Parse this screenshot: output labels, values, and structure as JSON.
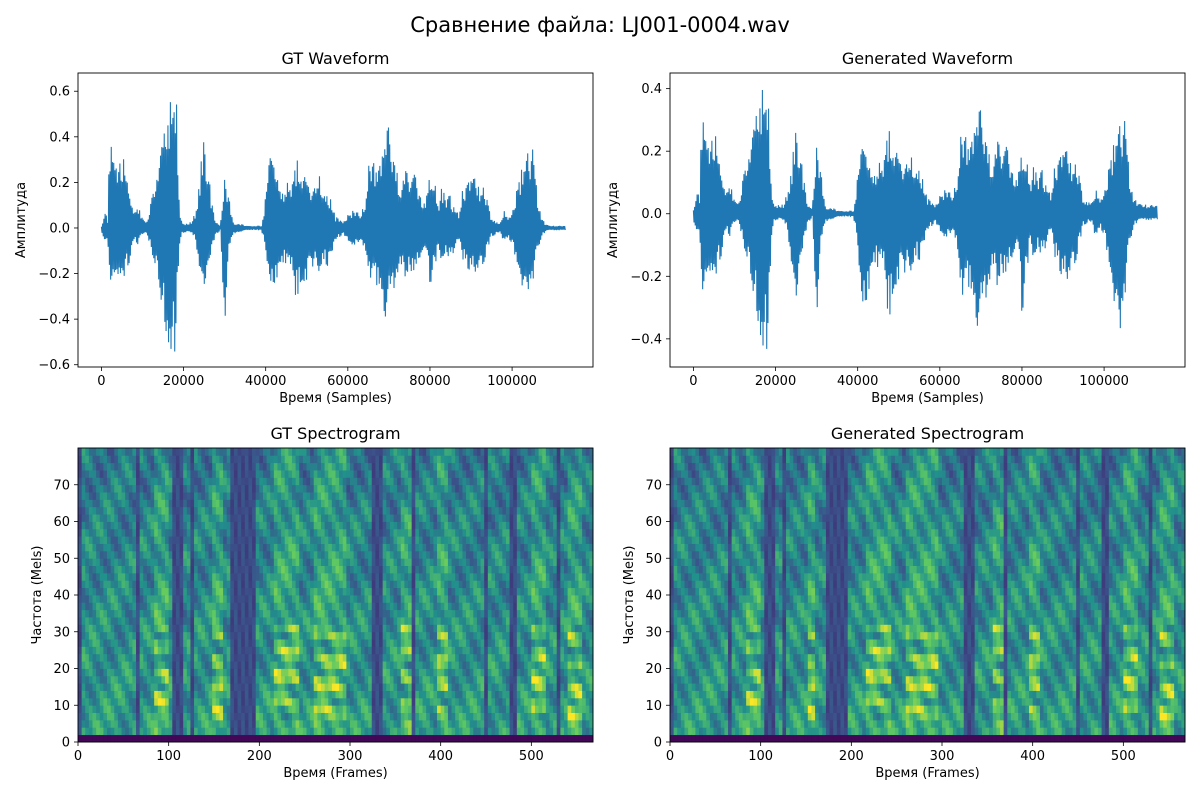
{
  "figure": {
    "suptitle": "Сравнение файла: LJ001-0004.wav"
  },
  "colors": {
    "waveform": "#1f77b4",
    "colormap": "viridis"
  },
  "chart_data": [
    {
      "id": "gt-waveform",
      "type": "line",
      "title": "GT Waveform",
      "xlabel": "Время (Samples)",
      "ylabel": "Амплитуда",
      "xlim": [
        -5700,
        119700
      ],
      "ylim": [
        -0.61,
        0.68
      ],
      "xticks": [
        0,
        20000,
        40000,
        60000,
        80000,
        100000
      ],
      "xtick_labels": [
        "0",
        "20000",
        "40000",
        "60000",
        "80000",
        "100000"
      ],
      "yticks": [
        -0.6,
        -0.4,
        -0.2,
        0.0,
        0.2,
        0.4,
        0.6
      ],
      "ytick_labels": [
        "−0.6",
        "−0.4",
        "−0.2",
        "0.0",
        "0.2",
        "0.4",
        "0.6"
      ],
      "series": [
        {
          "color": "#1f77b4",
          "envelope_x": [
            0,
            500,
            1000,
            1500,
            2000,
            3000,
            4000,
            5000,
            6000,
            7000,
            8000,
            9000,
            10000,
            11000,
            12000,
            13000,
            14000,
            15000,
            16000,
            17000,
            17500,
            18000,
            18500,
            19000,
            19500,
            20000,
            21000,
            22000,
            23000,
            24000,
            25000,
            26000,
            27000,
            28000,
            29000,
            30000,
            31000,
            32000,
            33000,
            34000,
            35000,
            36000,
            37000,
            38000,
            39000,
            40000,
            41000,
            42000,
            43000,
            44000,
            45000,
            46000,
            47000,
            48000,
            49000,
            50000,
            51000,
            52000,
            53000,
            54000,
            55000,
            56000,
            57000,
            58000,
            59000,
            60000,
            61000,
            62000,
            63000,
            64000,
            65000,
            66000,
            67000,
            68000,
            69000,
            70000,
            71000,
            72000,
            73000,
            74000,
            75000,
            76000,
            77000,
            78000,
            79000,
            80000,
            81000,
            82000,
            83000,
            84000,
            85000,
            86000,
            87000,
            88000,
            89000,
            90000,
            91000,
            92000,
            93000,
            94000,
            95000,
            96000,
            97000,
            98000,
            99000,
            100000,
            101000,
            102000,
            103000,
            104000,
            105000,
            106000,
            107000,
            108000,
            109000,
            110000,
            111000,
            112000,
            113000
          ],
          "envelope_max": [
            0.01,
            0.05,
            0.08,
            0.04,
            0.4,
            0.32,
            0.25,
            0.32,
            0.28,
            0.18,
            0.08,
            0.1,
            0.05,
            0.02,
            0.12,
            0.18,
            0.28,
            0.4,
            0.5,
            0.58,
            0.62,
            0.62,
            0.5,
            0.1,
            0.04,
            0.02,
            0.02,
            0.03,
            0.08,
            0.24,
            0.45,
            0.28,
            0.1,
            0.03,
            0.01,
            0.26,
            0.14,
            0.03,
            0.02,
            0.02,
            0.01,
            0.01,
            0.01,
            0.01,
            0.01,
            0.14,
            0.4,
            0.32,
            0.26,
            0.2,
            0.22,
            0.18,
            0.3,
            0.32,
            0.25,
            0.22,
            0.2,
            0.22,
            0.28,
            0.18,
            0.18,
            0.12,
            0.05,
            0.04,
            0.03,
            0.06,
            0.08,
            0.08,
            0.06,
            0.1,
            0.31,
            0.3,
            0.26,
            0.32,
            0.4,
            0.47,
            0.38,
            0.28,
            0.2,
            0.26,
            0.22,
            0.24,
            0.22,
            0.12,
            0.12,
            0.24,
            0.23,
            0.1,
            0.2,
            0.16,
            0.14,
            0.1,
            0.06,
            0.18,
            0.2,
            0.24,
            0.26,
            0.18,
            0.18,
            0.12,
            0.05,
            0.03,
            0.02,
            0.08,
            0.04,
            0.08,
            0.16,
            0.26,
            0.34,
            0.4,
            0.36,
            0.18,
            0.06,
            0.02,
            0.01,
            0.01,
            0.01,
            0.01,
            0.01
          ],
          "envelope_min": [
            -0.01,
            -0.05,
            -0.08,
            -0.05,
            -0.32,
            -0.25,
            -0.2,
            -0.24,
            -0.2,
            -0.16,
            -0.06,
            -0.08,
            -0.03,
            -0.02,
            -0.1,
            -0.18,
            -0.26,
            -0.4,
            -0.5,
            -0.54,
            -0.55,
            -0.54,
            -0.3,
            -0.08,
            -0.03,
            -0.02,
            -0.02,
            -0.03,
            -0.06,
            -0.22,
            -0.28,
            -0.22,
            -0.08,
            -0.03,
            -0.01,
            -0.47,
            -0.12,
            -0.03,
            -0.02,
            -0.02,
            -0.01,
            -0.01,
            -0.01,
            -0.01,
            -0.01,
            -0.1,
            -0.31,
            -0.26,
            -0.22,
            -0.18,
            -0.16,
            -0.18,
            -0.3,
            -0.3,
            -0.26,
            -0.24,
            -0.2,
            -0.16,
            -0.23,
            -0.14,
            -0.18,
            -0.12,
            -0.05,
            -0.04,
            -0.03,
            -0.06,
            -0.08,
            -0.08,
            -0.06,
            -0.1,
            -0.26,
            -0.26,
            -0.28,
            -0.32,
            -0.4,
            -0.38,
            -0.3,
            -0.22,
            -0.18,
            -0.26,
            -0.22,
            -0.2,
            -0.18,
            -0.1,
            -0.12,
            -0.25,
            -0.2,
            -0.08,
            -0.16,
            -0.12,
            -0.14,
            -0.1,
            -0.05,
            -0.16,
            -0.18,
            -0.2,
            -0.22,
            -0.16,
            -0.16,
            -0.1,
            -0.04,
            -0.03,
            -0.02,
            -0.06,
            -0.04,
            -0.08,
            -0.14,
            -0.24,
            -0.3,
            -0.32,
            -0.28,
            -0.12,
            -0.05,
            -0.02,
            -0.01,
            -0.01,
            -0.01,
            -0.01,
            -0.01
          ]
        }
      ]
    },
    {
      "id": "gen-waveform",
      "type": "line",
      "title": "Generated Waveform",
      "xlabel": "Время (Samples)",
      "ylabel": "Амплитуда",
      "xlim": [
        -5700,
        119700
      ],
      "ylim": [
        -0.49,
        0.45
      ],
      "xticks": [
        0,
        20000,
        40000,
        60000,
        80000,
        100000
      ],
      "xtick_labels": [
        "0",
        "20000",
        "40000",
        "60000",
        "80000",
        "100000"
      ],
      "yticks": [
        -0.4,
        -0.2,
        0.0,
        0.2,
        0.4
      ],
      "ytick_labels": [
        "−0.4",
        "−0.2",
        "0.0",
        "0.2",
        "0.4"
      ],
      "series": [
        {
          "color": "#1f77b4",
          "envelope_x": [
            0,
            500,
            1000,
            1500,
            2000,
            3000,
            4000,
            5000,
            6000,
            7000,
            8000,
            9000,
            10000,
            11000,
            12000,
            13000,
            14000,
            15000,
            16000,
            17000,
            17500,
            18000,
            18500,
            19000,
            19500,
            20000,
            21000,
            22000,
            23000,
            24000,
            25000,
            26000,
            27000,
            28000,
            29000,
            30000,
            31000,
            32000,
            33000,
            34000,
            35000,
            36000,
            37000,
            38000,
            39000,
            40000,
            41000,
            42000,
            43000,
            44000,
            45000,
            46000,
            47000,
            48000,
            49000,
            50000,
            51000,
            52000,
            53000,
            54000,
            55000,
            56000,
            57000,
            58000,
            59000,
            60000,
            61000,
            62000,
            63000,
            64000,
            65000,
            66000,
            67000,
            68000,
            69000,
            70000,
            71000,
            72000,
            73000,
            74000,
            75000,
            76000,
            77000,
            78000,
            79000,
            80000,
            81000,
            82000,
            83000,
            84000,
            85000,
            86000,
            87000,
            88000,
            89000,
            90000,
            91000,
            92000,
            93000,
            94000,
            95000,
            96000,
            97000,
            98000,
            99000,
            100000,
            101000,
            102000,
            103000,
            104000,
            105000,
            106000,
            107000,
            108000,
            109000,
            110000,
            111000,
            112000,
            113000
          ],
          "envelope_max": [
            0.02,
            0.05,
            0.08,
            0.06,
            0.33,
            0.26,
            0.2,
            0.27,
            0.22,
            0.15,
            0.08,
            0.1,
            0.05,
            0.03,
            0.12,
            0.16,
            0.22,
            0.3,
            0.38,
            0.41,
            0.41,
            0.4,
            0.3,
            0.1,
            0.04,
            0.03,
            0.03,
            0.03,
            0.08,
            0.16,
            0.31,
            0.22,
            0.1,
            0.03,
            0.02,
            0.26,
            0.14,
            0.03,
            0.02,
            0.02,
            0.01,
            0.01,
            0.01,
            0.01,
            0.01,
            0.12,
            0.27,
            0.22,
            0.18,
            0.16,
            0.18,
            0.15,
            0.28,
            0.28,
            0.22,
            0.19,
            0.18,
            0.2,
            0.22,
            0.16,
            0.18,
            0.1,
            0.05,
            0.04,
            0.03,
            0.06,
            0.08,
            0.08,
            0.06,
            0.1,
            0.28,
            0.26,
            0.22,
            0.27,
            0.32,
            0.35,
            0.3,
            0.22,
            0.18,
            0.24,
            0.2,
            0.22,
            0.2,
            0.12,
            0.12,
            0.2,
            0.19,
            0.1,
            0.17,
            0.14,
            0.14,
            0.1,
            0.06,
            0.16,
            0.18,
            0.22,
            0.24,
            0.16,
            0.16,
            0.12,
            0.05,
            0.04,
            0.04,
            0.08,
            0.04,
            0.08,
            0.14,
            0.22,
            0.3,
            0.34,
            0.31,
            0.16,
            0.06,
            0.04,
            0.03,
            0.03,
            0.03,
            0.03,
            0.03
          ],
          "envelope_min": [
            -0.02,
            -0.05,
            -0.08,
            -0.06,
            -0.35,
            -0.24,
            -0.18,
            -0.22,
            -0.18,
            -0.14,
            -0.06,
            -0.08,
            -0.03,
            -0.02,
            -0.1,
            -0.16,
            -0.22,
            -0.3,
            -0.38,
            -0.43,
            -0.44,
            -0.43,
            -0.3,
            -0.08,
            -0.03,
            -0.02,
            -0.02,
            -0.03,
            -0.06,
            -0.2,
            -0.3,
            -0.2,
            -0.08,
            -0.03,
            -0.01,
            -0.36,
            -0.12,
            -0.03,
            -0.02,
            -0.02,
            -0.01,
            -0.01,
            -0.01,
            -0.01,
            -0.01,
            -0.1,
            -0.38,
            -0.3,
            -0.24,
            -0.18,
            -0.18,
            -0.16,
            -0.3,
            -0.34,
            -0.26,
            -0.22,
            -0.22,
            -0.18,
            -0.22,
            -0.14,
            -0.16,
            -0.1,
            -0.05,
            -0.04,
            -0.03,
            -0.06,
            -0.08,
            -0.08,
            -0.06,
            -0.1,
            -0.32,
            -0.3,
            -0.26,
            -0.32,
            -0.36,
            -0.4,
            -0.3,
            -0.24,
            -0.18,
            -0.28,
            -0.22,
            -0.2,
            -0.18,
            -0.12,
            -0.12,
            -0.33,
            -0.22,
            -0.08,
            -0.16,
            -0.12,
            -0.14,
            -0.1,
            -0.05,
            -0.16,
            -0.18,
            -0.22,
            -0.24,
            -0.16,
            -0.16,
            -0.1,
            -0.04,
            -0.03,
            -0.03,
            -0.08,
            -0.04,
            -0.08,
            -0.14,
            -0.26,
            -0.34,
            -0.44,
            -0.32,
            -0.12,
            -0.05,
            -0.03,
            -0.02,
            -0.02,
            -0.02,
            -0.02,
            -0.02
          ]
        }
      ]
    },
    {
      "id": "gt-spectrogram",
      "type": "heatmap",
      "title": "GT Spectrogram",
      "xlabel": "Время (Frames)",
      "ylabel": "Частота (Mels)",
      "xlim": [
        0,
        568
      ],
      "ylim": [
        0,
        80
      ],
      "xticks": [
        0,
        100,
        200,
        300,
        400,
        500
      ],
      "xtick_labels": [
        "0",
        "100",
        "200",
        "300",
        "400",
        "500"
      ],
      "yticks": [
        0,
        10,
        20,
        30,
        40,
        50,
        60,
        70
      ],
      "ytick_labels": [
        "0",
        "10",
        "20",
        "30",
        "40",
        "50",
        "60",
        "70"
      ],
      "colormap": "viridis",
      "frames": 568,
      "mels": 80,
      "silent_frame_ranges": [
        [
          0,
          2
        ],
        [
          62,
          68
        ],
        [
          102,
          116
        ],
        [
          122,
          126
        ],
        [
          168,
          196
        ],
        [
          322,
          336
        ],
        [
          366,
          372
        ],
        [
          448,
          452
        ],
        [
          474,
          482
        ],
        [
          525,
          532
        ]
      ],
      "bright_frame_ranges": [
        [
          84,
          100
        ],
        [
          148,
          158
        ],
        [
          214,
          244
        ],
        [
          258,
          296
        ],
        [
          354,
          368
        ],
        [
          394,
          408
        ],
        [
          498,
          514
        ],
        [
          538,
          556
        ]
      ]
    },
    {
      "id": "gen-spectrogram",
      "type": "heatmap",
      "title": "Generated Spectrogram",
      "xlabel": "Время (Frames)",
      "ylabel": "Частота (Mels)",
      "xlim": [
        0,
        568
      ],
      "ylim": [
        0,
        80
      ],
      "xticks": [
        0,
        100,
        200,
        300,
        400,
        500
      ],
      "xtick_labels": [
        "0",
        "100",
        "200",
        "300",
        "400",
        "500"
      ],
      "yticks": [
        0,
        10,
        20,
        30,
        40,
        50,
        60,
        70
      ],
      "ytick_labels": [
        "0",
        "10",
        "20",
        "30",
        "40",
        "50",
        "60",
        "70"
      ],
      "colormap": "viridis",
      "frames": 568,
      "mels": 80,
      "silent_frame_ranges": [
        [
          0,
          2
        ],
        [
          62,
          68
        ],
        [
          102,
          116
        ],
        [
          122,
          126
        ],
        [
          170,
          196
        ],
        [
          322,
          336
        ],
        [
          366,
          372
        ],
        [
          448,
          452
        ],
        [
          474,
          482
        ],
        [
          525,
          532
        ]
      ],
      "bright_frame_ranges": [
        [
          84,
          100
        ],
        [
          150,
          158
        ],
        [
          214,
          244
        ],
        [
          258,
          296
        ],
        [
          354,
          368
        ],
        [
          394,
          408
        ],
        [
          498,
          514
        ],
        [
          538,
          556
        ]
      ]
    }
  ]
}
